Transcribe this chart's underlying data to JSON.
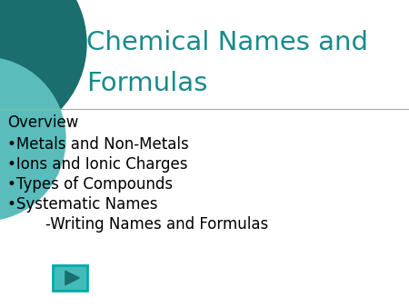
{
  "title_line1": "Chemical Names and",
  "title_line2": "Formulas",
  "title_color": "#1a8a8a",
  "background_color": "#ffffff",
  "overview_text": "Overview",
  "bullet_items": [
    "•Metals and Non-Metals",
    "•Ions and Ionic Charges",
    "•Types of Compounds",
    "•Systematic Names"
  ],
  "sub_item": "        -Writing Names and Formulas",
  "text_color": "#000000",
  "line_color": "#aaaaaa",
  "circle_color1": "#1a6e6e",
  "circle_color2": "#5bbcbc",
  "button_border_color": "#00aaaa",
  "button_bg_color": "#44bbbb",
  "button_arrow_color": "#1a6e6e",
  "title_fontsize": 21,
  "body_fontsize": 12,
  "overview_fontsize": 12
}
